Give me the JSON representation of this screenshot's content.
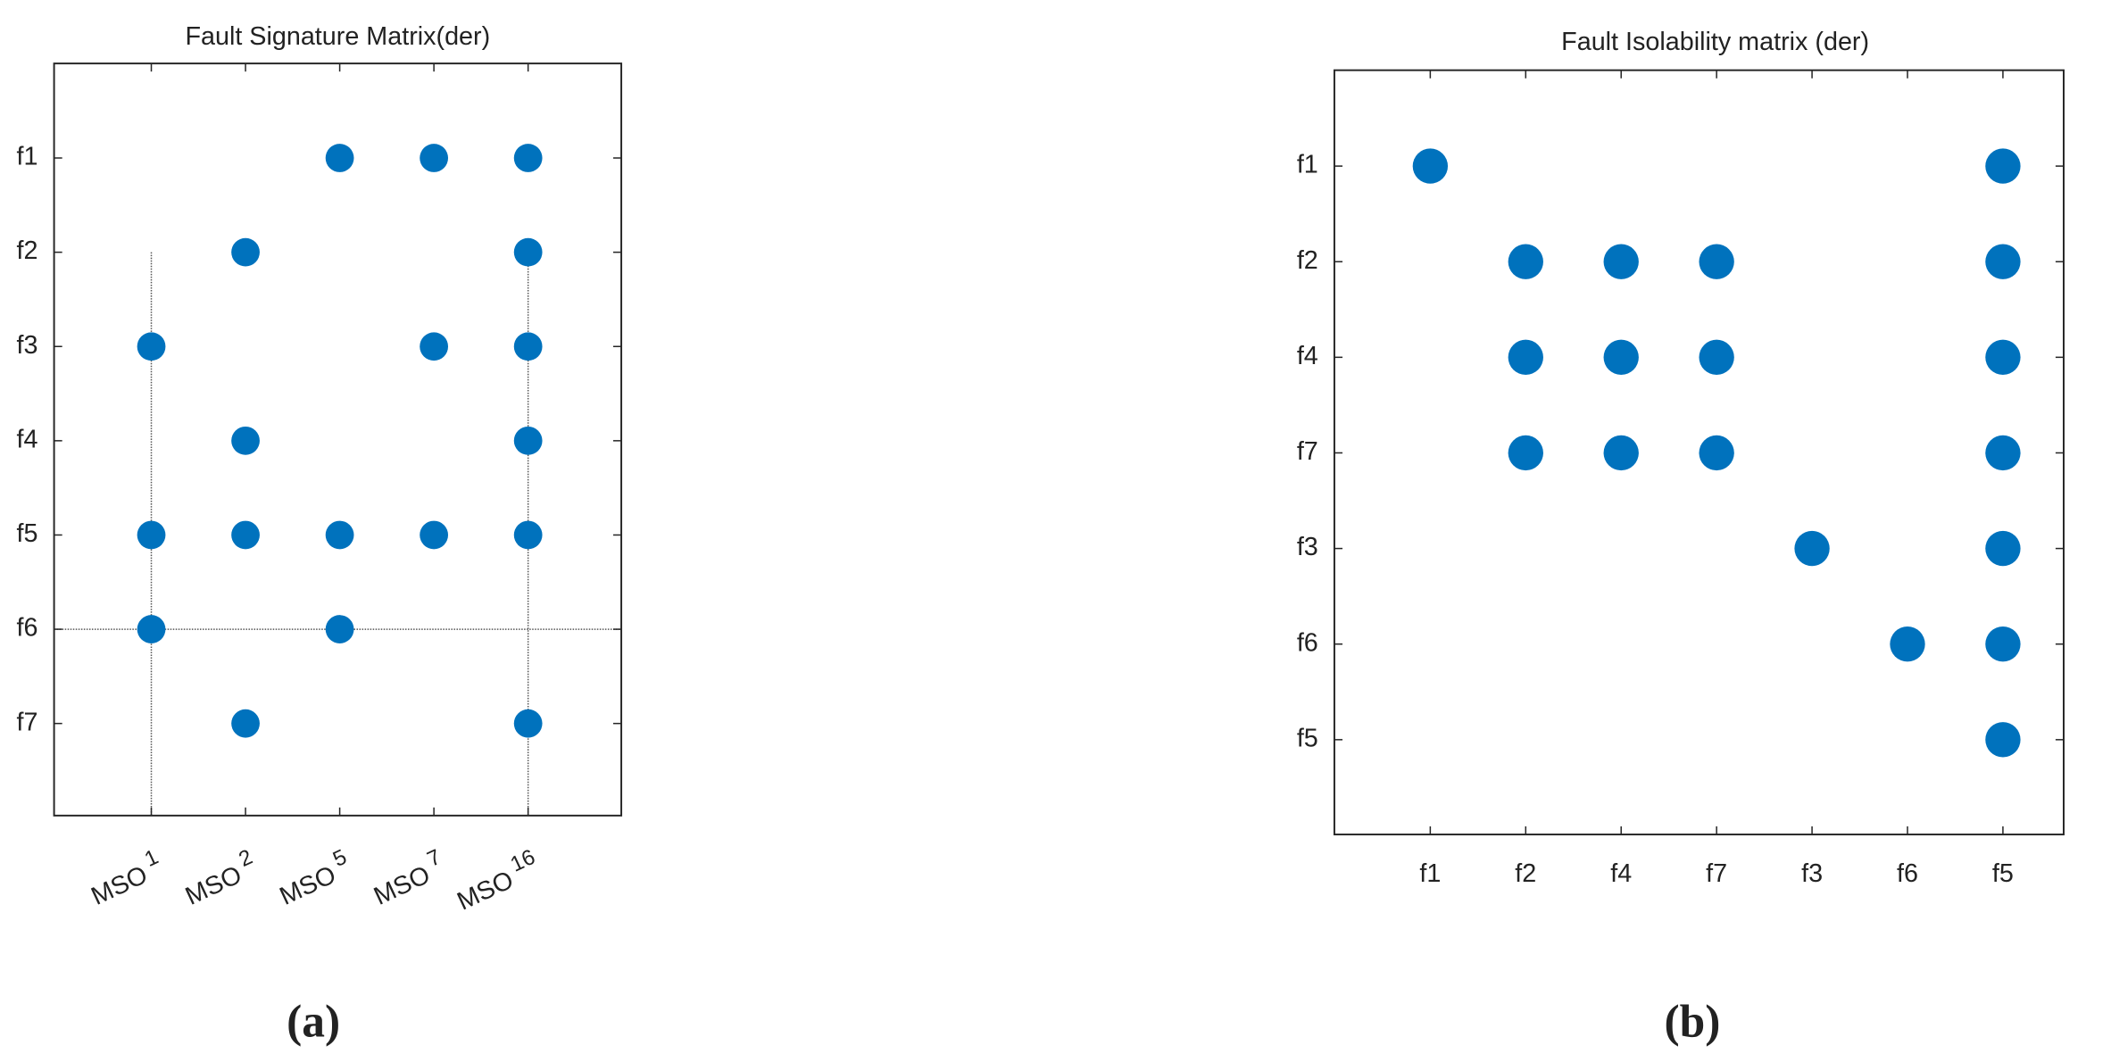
{
  "chart_data": [
    {
      "type": "matrix",
      "title": "Fault Signature Matrix(der)",
      "caption": "(a)",
      "x_categories": [
        {
          "text": "MSO",
          "sub": "1"
        },
        {
          "text": "MSO",
          "sub": "2"
        },
        {
          "text": "MSO",
          "sub": "5"
        },
        {
          "text": "MSO",
          "sub": "7"
        },
        {
          "text": "MSO",
          "sub": "16"
        }
      ],
      "y_categories": [
        "f1",
        "f2",
        "f3",
        "f4",
        "f5",
        "f6",
        "f7"
      ],
      "color": "#0072bd",
      "rows": [
        [
          0,
          0,
          1,
          1,
          1
        ],
        [
          0,
          1,
          0,
          0,
          1
        ],
        [
          1,
          0,
          0,
          1,
          1
        ],
        [
          0,
          1,
          0,
          0,
          1
        ],
        [
          1,
          1,
          1,
          1,
          1
        ],
        [
          1,
          0,
          1,
          0,
          0
        ],
        [
          0,
          1,
          0,
          0,
          1
        ]
      ]
    },
    {
      "type": "matrix",
      "title": "Fault Isolability matrix (der)",
      "caption": "(b)",
      "x_categories": [
        "f1",
        "f2",
        "f4",
        "f7",
        "f3",
        "f6",
        "f5"
      ],
      "y_categories": [
        "f1",
        "f2",
        "f4",
        "f7",
        "f3",
        "f6",
        "f5"
      ],
      "color": "#0072bd",
      "rows": [
        [
          1,
          0,
          0,
          0,
          0,
          0,
          1
        ],
        [
          0,
          1,
          1,
          1,
          0,
          0,
          1
        ],
        [
          0,
          1,
          1,
          1,
          0,
          0,
          1
        ],
        [
          0,
          1,
          1,
          1,
          0,
          0,
          1
        ],
        [
          0,
          0,
          0,
          0,
          1,
          0,
          1
        ],
        [
          0,
          0,
          0,
          0,
          0,
          1,
          1
        ],
        [
          0,
          0,
          0,
          0,
          0,
          0,
          1
        ]
      ]
    }
  ]
}
